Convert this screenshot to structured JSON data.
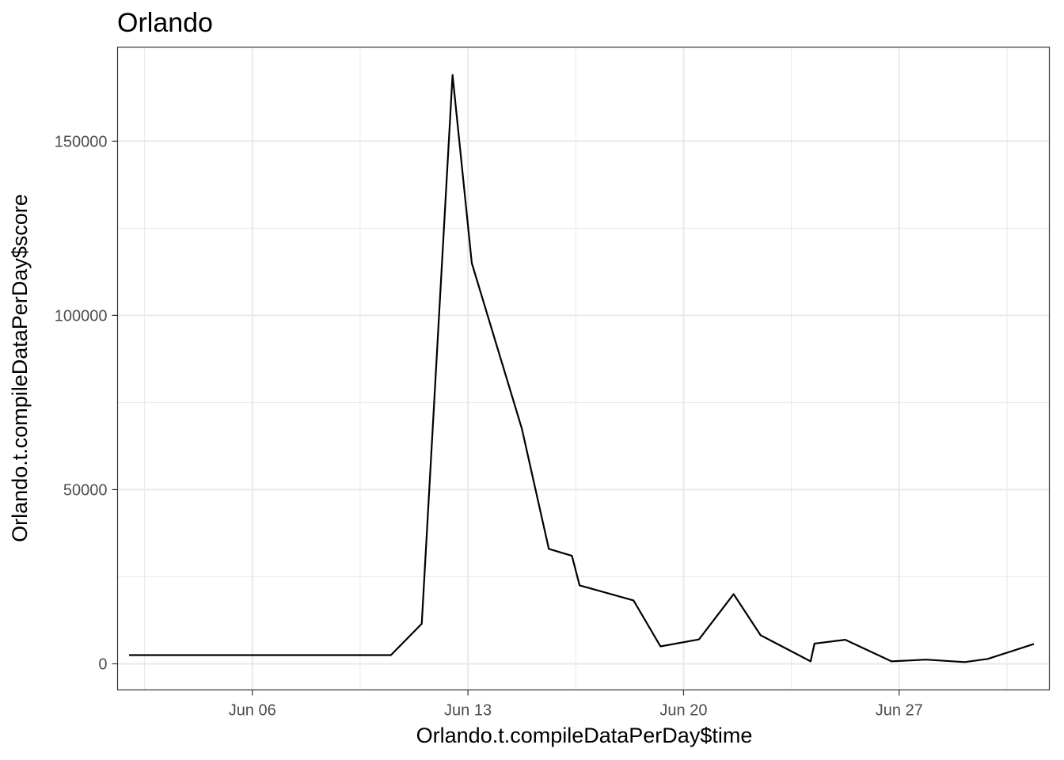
{
  "chart_data": {
    "type": "line",
    "title": "Orlando",
    "xlabel": "Orlando.t.compileDataPerDay$time",
    "ylabel": "Orlando.t.compileDataPerDay$score",
    "x_ticks": [
      "Jun 06",
      "Jun 13",
      "Jun 20",
      "Jun 27"
    ],
    "y_ticks": [
      "0",
      "50000",
      "100000",
      "150000"
    ],
    "ylim": [
      -7500,
      177000
    ],
    "xlim": [
      "2016-06-01T15:00",
      "2016-07-01T21:00"
    ],
    "grid": true,
    "legend": "none",
    "line_color": "#000000",
    "series": [
      {
        "points": [
          {
            "x": "2016-06-02T00:00",
            "y": 2500
          },
          {
            "x": "2016-06-10T12:00",
            "y": 2500
          },
          {
            "x": "2016-06-11T12:00",
            "y": 11500
          },
          {
            "x": "2016-06-12T12:00",
            "y": 169000
          },
          {
            "x": "2016-06-13T03:00",
            "y": 115000
          },
          {
            "x": "2016-06-14T18:00",
            "y": 67500
          },
          {
            "x": "2016-06-15T15:00",
            "y": 33000
          },
          {
            "x": "2016-06-16T09:00",
            "y": 31000
          },
          {
            "x": "2016-06-16T15:00",
            "y": 22500
          },
          {
            "x": "2016-06-18T09:00",
            "y": 18200
          },
          {
            "x": "2016-06-19T06:00",
            "y": 5000
          },
          {
            "x": "2016-06-20T12:00",
            "y": 7000
          },
          {
            "x": "2016-06-21T15:00",
            "y": 20000
          },
          {
            "x": "2016-06-22T12:00",
            "y": 8200
          },
          {
            "x": "2016-06-24T03:00",
            "y": 700
          },
          {
            "x": "2016-06-24T06:00",
            "y": 5800
          },
          {
            "x": "2016-06-25T06:00",
            "y": 6900
          },
          {
            "x": "2016-06-26T18:00",
            "y": 700
          },
          {
            "x": "2016-06-27T21:00",
            "y": 1200
          },
          {
            "x": "2016-06-29T03:00",
            "y": 500
          },
          {
            "x": "2016-06-29T21:00",
            "y": 1400
          },
          {
            "x": "2016-07-01T09:00",
            "y": 5700
          }
        ]
      }
    ]
  }
}
